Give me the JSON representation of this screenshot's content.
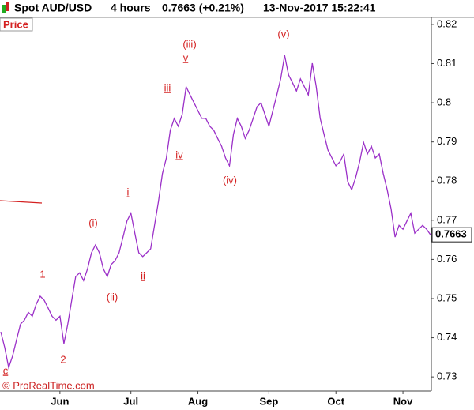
{
  "header": {
    "symbol": "Spot AUD/USD",
    "interval": "4 hours",
    "quote": "0.7663 (+0.21%)",
    "timestamp": "13-Nov-2017 15:22:41"
  },
  "panel_label": "Price",
  "copyright": "© ProRealTime.com",
  "chart_data": {
    "type": "line",
    "color": "#9b30c8",
    "categories": [
      null,
      null,
      null,
      null,
      null,
      null,
      null,
      null,
      null,
      null,
      null,
      null,
      null,
      null,
      null,
      "Jun",
      null,
      null,
      null,
      null,
      null,
      null,
      null,
      null,
      null,
      null,
      null,
      null,
      null,
      null,
      null,
      null,
      null,
      "Jul",
      null,
      null,
      null,
      null,
      null,
      null,
      null,
      null,
      null,
      null,
      null,
      null,
      null,
      null,
      null,
      null,
      "Aug",
      null,
      null,
      null,
      null,
      null,
      null,
      null,
      null,
      null,
      null,
      null,
      null,
      null,
      null,
      null,
      null,
      null,
      "Sep",
      null,
      null,
      null,
      null,
      null,
      null,
      null,
      null,
      null,
      null,
      null,
      null,
      null,
      null,
      null,
      null,
      "Oct",
      null,
      null,
      null,
      null,
      null,
      null,
      null,
      null,
      null,
      null,
      null,
      null,
      null,
      null,
      null,
      null,
      "Nov",
      null,
      null,
      null,
      null,
      null,
      null,
      null
    ],
    "values": [
      0.7415,
      0.7375,
      0.7324,
      0.7354,
      0.7395,
      0.7435,
      0.7445,
      0.7465,
      0.7455,
      0.7486,
      0.7506,
      0.7496,
      0.7476,
      0.7455,
      0.7445,
      0.7455,
      0.7385,
      0.7435,
      0.7496,
      0.7556,
      0.7566,
      0.7546,
      0.7576,
      0.7617,
      0.7637,
      0.7617,
      0.7576,
      0.7556,
      0.7587,
      0.7597,
      0.7617,
      0.7657,
      0.7698,
      0.7718,
      0.7667,
      0.7617,
      0.7607,
      0.7617,
      0.7627,
      0.7687,
      0.7748,
      0.7819,
      0.7859,
      0.793,
      0.796,
      0.794,
      0.797,
      0.8041,
      0.802,
      0.8,
      0.798,
      0.796,
      0.796,
      0.794,
      0.793,
      0.7909,
      0.7889,
      0.7859,
      0.7839,
      0.7919,
      0.796,
      0.794,
      0.7909,
      0.793,
      0.796,
      0.799,
      0.8,
      0.797,
      0.794,
      0.798,
      0.802,
      0.8061,
      0.8121,
      0.8071,
      0.8051,
      0.803,
      0.8061,
      0.8041,
      0.802,
      0.8101,
      0.8041,
      0.796,
      0.7919,
      0.7879,
      0.7859,
      0.7839,
      0.7849,
      0.7869,
      0.7798,
      0.7778,
      0.7809,
      0.7849,
      0.7899,
      0.7869,
      0.7889,
      0.7859,
      0.7869,
      0.7819,
      0.7778,
      0.7728,
      0.7657,
      0.7687,
      0.7677,
      0.7698,
      0.7718,
      0.7667,
      0.7677,
      0.7687,
      0.7677,
      0.7663
    ],
    "last_value": 0.7663,
    "ylim": [
      0.7264,
      0.8218
    ],
    "yticks": [
      0.73,
      0.74,
      0.75,
      0.76,
      0.77,
      0.78,
      0.79,
      0.8,
      0.81,
      0.82
    ],
    "annotations": [
      "c",
      "2",
      "1",
      "(i)",
      "(ii)",
      "i",
      "ii",
      "iii",
      "iv",
      "(iii)",
      "v",
      "(iv)",
      "(v)"
    ],
    "annotation_color": "#d42020"
  }
}
